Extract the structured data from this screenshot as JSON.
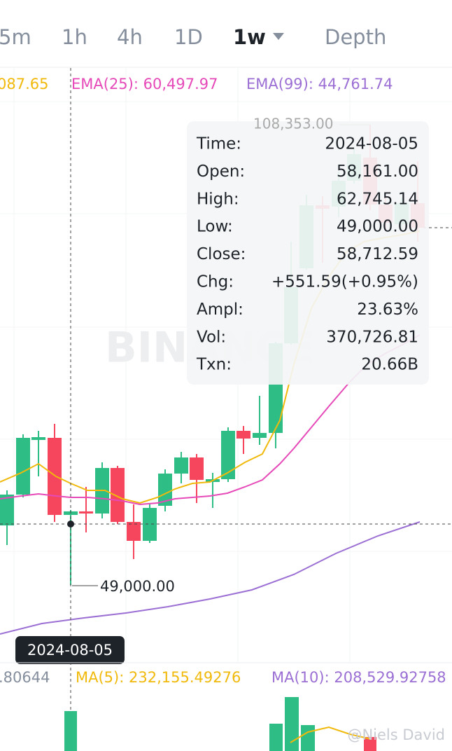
{
  "tabs": [
    "5m",
    "1h",
    "4h",
    "1D",
    "1w",
    "Depth"
  ],
  "indicators": {
    "ma_partial": "087.65",
    "ema25": "EMA(25): 60,497.97",
    "ema99": "EMA(99): 44,761.74"
  },
  "tooltip": {
    "rows": [
      [
        "Time:",
        "2024-08-05"
      ],
      [
        "Open:",
        "58,161.00"
      ],
      [
        "High:",
        "62,745.14"
      ],
      [
        "Low:",
        "49,000.00"
      ],
      [
        "Close:",
        "58,712.59"
      ],
      [
        "Chg:",
        "+551.59(+0.95%)"
      ],
      [
        "Ampl:",
        "23.63%"
      ],
      [
        "Vol:",
        "370,726.81"
      ],
      [
        "Txn:",
        "20.66B"
      ]
    ]
  },
  "high_marker": "108,353.00",
  "low_marker": "49,000.00",
  "crosshair_date": "2024-08-05",
  "logo": "BINANCE",
  "volume": {
    "partial": ".80644",
    "ma5": "MA(5): 232,155.49276",
    "ma10": "MA(10): 208,529.92758"
  },
  "credit": "@Niels David"
}
